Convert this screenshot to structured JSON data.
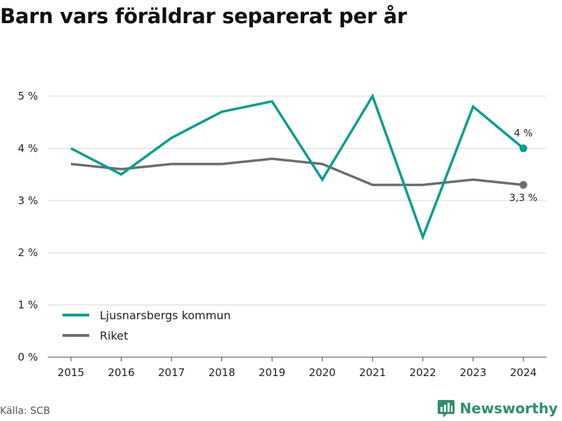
{
  "header": {
    "title": "Barn vars föräldrar separerat per år"
  },
  "footer": {
    "source": "Källa: SCB",
    "brand": "Newsworthy"
  },
  "colors": {
    "kommun": "#009e8f",
    "riket": "#6e6c73",
    "grid": "#d9d9d9",
    "brand": "#2f8f6e"
  },
  "chart_data": {
    "type": "line",
    "title": "Barn vars föräldrar separerat per år",
    "xlabel": "",
    "ylabel": "",
    "x": [
      "2015",
      "2016",
      "2017",
      "2018",
      "2019",
      "2020",
      "2021",
      "2022",
      "2023",
      "2024"
    ],
    "ylim": [
      0,
      5
    ],
    "yticks": [
      0,
      1,
      2,
      3,
      4,
      5
    ],
    "ytick_labels": [
      "0 %",
      "1 %",
      "2 %",
      "3 %",
      "4 %",
      "5 %"
    ],
    "grid": true,
    "legend_position": "bottom-left",
    "series": [
      {
        "name": "Ljusnarsbergs kommun",
        "color": "#009e8f",
        "values": [
          4.0,
          3.5,
          4.2,
          4.7,
          4.9,
          3.4,
          5.0,
          2.3,
          4.8,
          4.0
        ],
        "end_label": "4 %"
      },
      {
        "name": "Riket",
        "color": "#6e6c73",
        "values": [
          3.7,
          3.6,
          3.7,
          3.7,
          3.8,
          3.7,
          3.3,
          3.3,
          3.4,
          3.3
        ],
        "end_label": "3,3 %"
      }
    ]
  }
}
